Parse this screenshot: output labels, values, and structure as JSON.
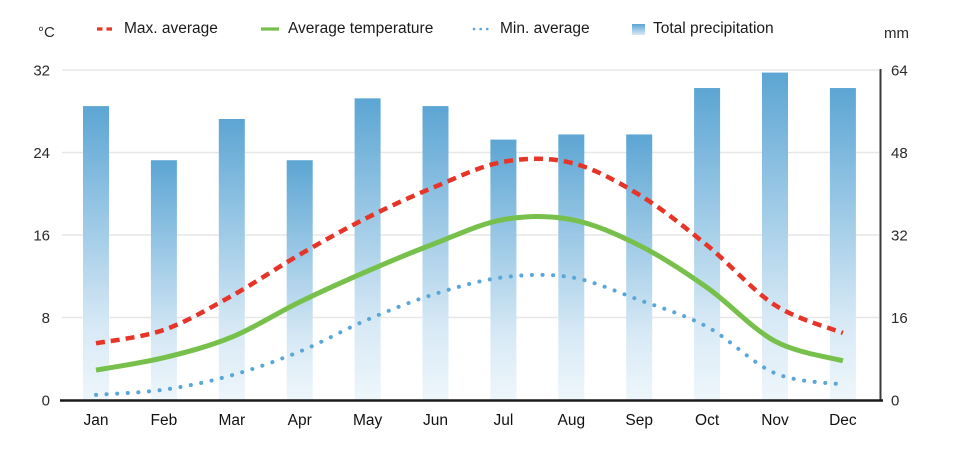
{
  "chart_data": {
    "type": "combo",
    "title": "",
    "months": [
      "Jan",
      "Feb",
      "Mar",
      "Apr",
      "May",
      "Jun",
      "Jul",
      "Aug",
      "Sep",
      "Oct",
      "Nov",
      "Dec"
    ],
    "left_axis": {
      "label": "°C",
      "ticks": [
        0,
        8,
        16,
        24,
        32
      ],
      "range": [
        0,
        32
      ]
    },
    "right_axis": {
      "label": "mm",
      "ticks": [
        0,
        16,
        32,
        48,
        64
      ],
      "range": [
        0,
        64
      ]
    },
    "grid": true,
    "legend_position": "top",
    "series": [
      {
        "name": "Max. average",
        "type": "line",
        "style": "dashed",
        "unit": "°C",
        "color": "#e73428",
        "values": [
          5.5,
          6.8,
          10.1,
          14.1,
          17.7,
          20.7,
          23.1,
          23.0,
          19.9,
          15.0,
          9.2,
          6.5
        ]
      },
      {
        "name": "Average temperature",
        "type": "line",
        "style": "solid",
        "unit": "°C",
        "color": "#77c04b",
        "values": [
          2.9,
          4.1,
          6.1,
          9.5,
          12.5,
          15.2,
          17.5,
          17.5,
          15.0,
          10.9,
          5.7,
          3.8
        ]
      },
      {
        "name": "Min. average",
        "type": "line",
        "style": "dotted",
        "unit": "°C",
        "color": "#58a7d8",
        "values": [
          0.5,
          1.0,
          2.4,
          4.7,
          7.8,
          10.3,
          11.9,
          11.9,
          9.7,
          7.1,
          2.6,
          1.5
        ]
      },
      {
        "name": "Total precipitation",
        "type": "bar",
        "unit": "mm",
        "color": "#5ca5d3",
        "bar_gradient": [
          "#5ca5d3",
          "#95c5e4",
          "#d7e9f5",
          "#eef6fb"
        ],
        "values": [
          57,
          46.5,
          54.5,
          46.5,
          58.5,
          57,
          50.5,
          51.5,
          51.5,
          60.5,
          63.5,
          60.5
        ]
      }
    ]
  }
}
